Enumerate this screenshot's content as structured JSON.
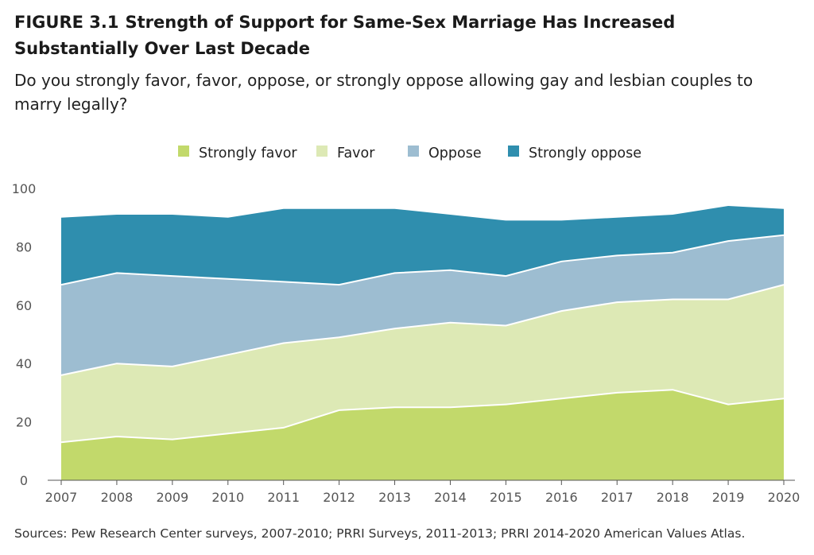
{
  "figure": {
    "number": "FIGURE 3.1",
    "title": "Strength of Support for Same-Sex Marriage Has Increased Substantially Over Last Decade",
    "subtitle": "Do you strongly favor, favor, oppose, or strongly oppose allowing gay and lesbian couples to marry legally?",
    "source": "Sources: Pew Research Center surveys, 2007-2010; PRRI Surveys, 2011-2013; PRRI 2014-2020 American Values Atlas."
  },
  "chart_data": {
    "type": "area",
    "stacked": true,
    "x": [
      "2007",
      "2008",
      "2009",
      "2010",
      "2011",
      "2012",
      "2013",
      "2014",
      "2015",
      "2016",
      "2017",
      "2018",
      "2019",
      "2020"
    ],
    "ylim": [
      0,
      100
    ],
    "yticks": [
      0,
      20,
      40,
      60,
      80,
      100
    ],
    "legend_position": "top-center",
    "grid": false,
    "series": [
      {
        "name": "Strongly favor",
        "color": "#c2d96b",
        "values": [
          13,
          15,
          14,
          16,
          18,
          24,
          25,
          25,
          26,
          28,
          30,
          31,
          26,
          28
        ]
      },
      {
        "name": "Favor",
        "color": "#dde9b5",
        "values": [
          23,
          25,
          25,
          27,
          29,
          25,
          27,
          29,
          27,
          30,
          31,
          31,
          36,
          39
        ]
      },
      {
        "name": "Oppose",
        "color": "#9dbdd1",
        "values": [
          31,
          31,
          31,
          26,
          21,
          18,
          19,
          18,
          17,
          17,
          16,
          16,
          20,
          17
        ]
      },
      {
        "name": "Strongly oppose",
        "color": "#2f8eae",
        "values": [
          23,
          20,
          21,
          21,
          25,
          26,
          22,
          19,
          19,
          14,
          13,
          13,
          12,
          9
        ]
      }
    ]
  }
}
